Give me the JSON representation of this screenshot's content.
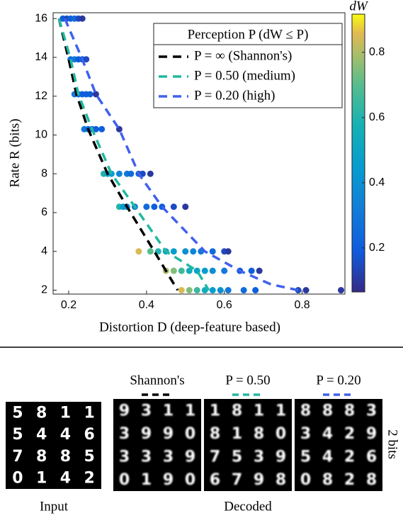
{
  "chart_data": {
    "type": "scatter",
    "xlabel": "Distortion D (deep-feature based)",
    "ylabel": "Rate R (bits)",
    "colorbar_label": "dW",
    "legend_title": "Perception P (dW ≤ P)",
    "xlim": [
      0.16,
      0.91
    ],
    "ylim": [
      1.8,
      16.3
    ],
    "clim": [
      0.065,
      0.917
    ],
    "xticks": [
      0.2,
      0.4,
      0.6,
      0.8
    ],
    "yticks": [
      2,
      4,
      6,
      8,
      10,
      12,
      14,
      16
    ],
    "cticks": [
      0.2,
      0.4,
      0.6,
      0.8
    ],
    "colormap": "parula",
    "x": [
      0.185,
      0.195,
      0.205,
      0.215,
      0.225,
      0.235,
      0.205,
      0.215,
      0.225,
      0.235,
      0.245,
      0.215,
      0.225,
      0.235,
      0.245,
      0.255,
      0.27,
      0.24,
      0.25,
      0.26,
      0.27,
      0.285,
      0.33,
      0.29,
      0.3,
      0.31,
      0.33,
      0.35,
      0.36,
      0.38,
      0.39,
      0.41,
      0.33,
      0.34,
      0.35,
      0.37,
      0.4,
      0.42,
      0.44,
      0.47,
      0.5,
      0.38,
      0.41,
      0.43,
      0.45,
      0.47,
      0.5,
      0.52,
      0.54,
      0.57,
      0.6,
      0.61,
      0.45,
      0.47,
      0.49,
      0.51,
      0.53,
      0.55,
      0.57,
      0.6,
      0.64,
      0.67,
      0.69,
      0.49,
      0.51,
      0.53,
      0.55,
      0.57,
      0.59,
      0.61,
      0.65,
      0.68,
      0.79,
      0.81,
      0.9
    ],
    "y": [
      16,
      16,
      16,
      16,
      16,
      16,
      13.9,
      13.9,
      13.9,
      13.9,
      13.9,
      12.1,
      12.1,
      12.1,
      12.1,
      12.1,
      12.1,
      10.3,
      10.3,
      10.3,
      10.3,
      10.3,
      10.3,
      8,
      8,
      8,
      8,
      8,
      8,
      8,
      8,
      8,
      6.3,
      6.3,
      6.3,
      6.3,
      6.3,
      6.3,
      6.3,
      6.3,
      6.3,
      4,
      4,
      4,
      4,
      4,
      4,
      4,
      4,
      4,
      4,
      4,
      3,
      3,
      3,
      3,
      3,
      3,
      3,
      3,
      3,
      3,
      3,
      2,
      2,
      2,
      2,
      2,
      2,
      2,
      2,
      2,
      2,
      2,
      2
    ],
    "c": [
      0.2,
      0.15,
      0.2,
      0.25,
      0.15,
      0.1,
      0.25,
      0.3,
      0.2,
      0.2,
      0.15,
      0.3,
      0.25,
      0.2,
      0.2,
      0.2,
      0.1,
      0.3,
      0.25,
      0.25,
      0.2,
      0.2,
      0.1,
      0.6,
      0.5,
      0.45,
      0.35,
      0.3,
      0.25,
      0.2,
      0.15,
      0.1,
      0.6,
      0.45,
      0.4,
      0.3,
      0.25,
      0.2,
      0.2,
      0.15,
      0.1,
      0.85,
      0.7,
      0.6,
      0.5,
      0.45,
      0.4,
      0.35,
      0.3,
      0.25,
      0.15,
      0.1,
      0.8,
      0.75,
      0.65,
      0.55,
      0.5,
      0.45,
      0.4,
      0.3,
      0.2,
      0.2,
      0.1,
      0.85,
      0.75,
      0.65,
      0.55,
      0.45,
      0.4,
      0.3,
      0.25,
      0.2,
      0.15,
      0.1,
      0.1
    ],
    "series": [
      {
        "name": "P = ∞ (Shannon's)",
        "color": "#000000",
        "x": [
          0.175,
          0.2,
          0.22,
          0.25,
          0.3,
          0.35,
          0.42,
          0.48
        ],
        "y": [
          16,
          13.9,
          12.1,
          10.3,
          8,
          6.3,
          4,
          2
        ]
      },
      {
        "name": "P = 0.50 (medium)",
        "color": "#22b8a0",
        "x": [
          0.175,
          0.205,
          0.225,
          0.26,
          0.31,
          0.37,
          0.45,
          0.53,
          0.56
        ],
        "y": [
          16,
          13.9,
          12.1,
          10.3,
          8,
          6.3,
          4,
          3,
          2
        ]
      },
      {
        "name": "P = 0.20 (high)",
        "color": "#4060ee",
        "x": [
          0.19,
          0.235,
          0.27,
          0.33,
          0.38,
          0.44,
          0.55,
          0.64,
          0.72,
          0.79
        ],
        "y": [
          16,
          13.9,
          12.1,
          10.3,
          8,
          6.3,
          4,
          3,
          2.3,
          2
        ]
      }
    ]
  },
  "image_panel": {
    "input_label": "Input",
    "decoded_label": "Decoded",
    "row_label": "2 bits",
    "input": [
      [
        "5",
        "8",
        "1",
        "1"
      ],
      [
        "5",
        "4",
        "4",
        "6"
      ],
      [
        "7",
        "8",
        "8",
        "5"
      ],
      [
        "0",
        "1",
        "4",
        "2"
      ]
    ],
    "decoded": [
      {
        "name": "Shannon's",
        "digits": [
          [
            "9",
            "3",
            "1",
            "1"
          ],
          [
            "3",
            "9",
            "9",
            "0"
          ],
          [
            "3",
            "3",
            "3",
            "9"
          ],
          [
            "0",
            "1",
            "9",
            "0"
          ]
        ]
      },
      {
        "name": "P = 0.50",
        "digits": [
          [
            "1",
            "8",
            "1",
            "1"
          ],
          [
            "8",
            "1",
            "8",
            "0"
          ],
          [
            "7",
            "5",
            "3",
            "9"
          ],
          [
            "6",
            "7",
            "9",
            "8"
          ]
        ]
      },
      {
        "name": "P = 0.20",
        "digits": [
          [
            "8",
            "8",
            "8",
            "3"
          ],
          [
            "3",
            "4",
            "2",
            "9"
          ],
          [
            "5",
            "4",
            "2",
            "6"
          ],
          [
            "0",
            "8",
            "2",
            "8"
          ]
        ]
      }
    ]
  }
}
